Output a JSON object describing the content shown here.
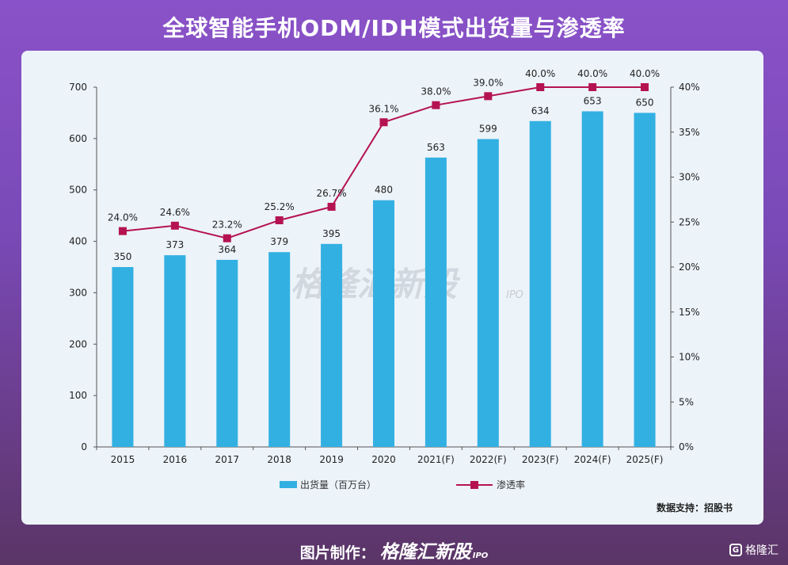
{
  "title": "全球智能手机ODM/IDH模式出货量与渗透率",
  "source": "数据支持：招股书",
  "footer": {
    "label": "图片制作：",
    "brand": "格隆汇新股",
    "brand_suffix": "IPO"
  },
  "watermark": {
    "text": "格隆汇新股",
    "suffix": "IPO"
  },
  "corner_logo": {
    "text": "格隆汇",
    "icon": "g-logo-icon"
  },
  "colors": {
    "bar": "#33b0e2",
    "line": "#b5134f",
    "card": "#ecf3f9"
  },
  "chart_data": {
    "type": "bar",
    "categories": [
      "2015",
      "2016",
      "2017",
      "2018",
      "2019",
      "2020",
      "2021(F)",
      "2022(F)",
      "2023(F)",
      "2024(F)",
      "2025(F)"
    ],
    "series": [
      {
        "name": "出货量（百万台）",
        "type": "bar",
        "axis": "left",
        "values": [
          350,
          373,
          364,
          379,
          395,
          480,
          563,
          599,
          634,
          653,
          650
        ],
        "labels": [
          "350",
          "373",
          "364",
          "379",
          "395",
          "480",
          "563",
          "599",
          "634",
          "653",
          "650"
        ]
      },
      {
        "name": "渗透率",
        "type": "line",
        "axis": "right",
        "values": [
          24.0,
          24.6,
          23.2,
          25.2,
          26.7,
          36.1,
          38.0,
          39.0,
          40.0,
          40.0,
          40.0
        ],
        "labels": [
          "24.0%",
          "24.6%",
          "23.2%",
          "25.2%",
          "26.7%",
          "36.1%",
          "38.0%",
          "39.0%",
          "40.0%",
          "40.0%",
          "40.0%"
        ]
      }
    ],
    "y_left": {
      "min": 0,
      "max": 700,
      "ticks": [
        "0",
        "100",
        "200",
        "300",
        "400",
        "500",
        "600",
        "700"
      ]
    },
    "y_right": {
      "min": 0,
      "max": 40,
      "ticks": [
        "0%",
        "5%",
        "10%",
        "15%",
        "20%",
        "25%",
        "30%",
        "35%",
        "40%"
      ]
    },
    "grid": false,
    "legend_position": "bottom"
  }
}
